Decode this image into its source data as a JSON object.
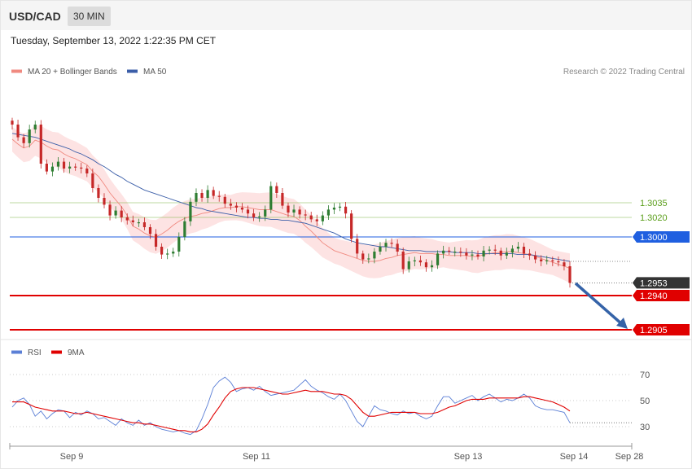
{
  "header": {
    "symbol": "USD/CAD",
    "timeframe": "30 MIN",
    "datetime": "Tuesday, September 13, 2022 1:22:35 PM CET"
  },
  "legend_main": [
    {
      "label": "MA 20 + Bollinger Bands",
      "color": "#f08a80"
    },
    {
      "label": "MA 50",
      "color": "#3b5ea8"
    }
  ],
  "credit": "Research © 2022 Trading Central",
  "legend_rsi": [
    {
      "label": "RSI",
      "color": "#5b7fd6"
    },
    {
      "label": "9MA",
      "color": "#e00000"
    }
  ],
  "colors": {
    "up": "#2e7d32",
    "down": "#c62828",
    "band": "#fde3e3",
    "resistance": "#7cb342",
    "pivot": "#1f5fe0",
    "support": "#e00000",
    "last": "#333333",
    "arrow": "#3563a8"
  },
  "chart_data": [
    {
      "type": "candlestick",
      "x_ticks": [
        "Sep 9",
        "Sep 11",
        "Sep 13",
        "Sep 14",
        "Sep 28"
      ],
      "ylim": [
        1.2895,
        1.3115
      ],
      "levels": [
        {
          "value": 1.3035,
          "label": "1.3035",
          "kind": "resistance"
        },
        {
          "value": 1.302,
          "label": "1.3020",
          "kind": "resistance"
        },
        {
          "value": 1.3,
          "label": "1.3000",
          "kind": "pivot"
        },
        {
          "value": 1.2953,
          "label": "1.2953",
          "kind": "last"
        },
        {
          "value": 1.294,
          "label": "1.2940",
          "kind": "support"
        },
        {
          "value": 1.2905,
          "label": "1.2905",
          "kind": "support"
        }
      ],
      "close": [
        1.3115,
        1.3102,
        1.3096,
        1.311,
        1.3115,
        1.3075,
        1.3067,
        1.3072,
        1.3077,
        1.307,
        1.3072,
        1.3071,
        1.307,
        1.3065,
        1.305,
        1.304,
        1.3033,
        1.3022,
        1.3027,
        1.302,
        1.3017,
        1.3015,
        1.3015,
        1.301,
        1.3003,
        1.299,
        1.2982,
        1.2983,
        1.2985,
        1.3,
        1.3016,
        1.3036,
        1.3045,
        1.304,
        1.3048,
        1.3042,
        1.3041,
        1.3034,
        1.3032,
        1.303,
        1.3028,
        1.3024,
        1.302,
        1.3021,
        1.3028,
        1.3052,
        1.3045,
        1.3032,
        1.3025,
        1.3028,
        1.3023,
        1.3022,
        1.3018,
        1.3016,
        1.3022,
        1.3028,
        1.303,
        1.3031,
        1.3024,
        1.2998,
        1.2983,
        1.2977,
        1.2978,
        1.2985,
        1.299,
        1.2994,
        1.2993,
        1.2985,
        1.2967,
        1.2975,
        1.2976,
        1.2974,
        1.2969,
        1.2971,
        1.2983,
        1.2986,
        1.2985,
        1.2985,
        1.2984,
        1.2981,
        1.2982,
        1.298,
        1.2986,
        1.2987,
        1.2986,
        1.2981,
        1.2984,
        1.2988,
        1.299,
        1.2983,
        1.2981,
        1.2977,
        1.2975,
        1.2976,
        1.2975,
        1.2974,
        1.297,
        1.2953
      ],
      "series": [
        {
          "name": "MA 20",
          "values": [
            1.31,
            1.3095,
            1.3091,
            1.3093,
            1.3099,
            1.3097,
            1.3093,
            1.309,
            1.3089,
            1.3085,
            1.3082,
            1.308,
            1.3077,
            1.3074,
            1.3067,
            1.3062,
            1.3054,
            1.3045,
            1.3038,
            1.3031,
            1.3022,
            1.3011,
            1.3008,
            1.3004,
            1.3001,
            1.3,
            1.3003,
            1.3007,
            1.3012,
            1.3016,
            1.3019,
            1.3021,
            1.3022,
            1.3024,
            1.3025,
            1.3027,
            1.3029,
            1.303,
            1.303,
            1.3031,
            1.3031,
            1.303,
            1.3029,
            1.3028,
            1.3028,
            1.3028,
            1.3026,
            1.3024,
            1.3022,
            1.3021,
            1.3017,
            1.3011,
            1.3006,
            1.3,
            1.2994,
            1.299,
            1.2986,
            1.2984,
            1.2982,
            1.298,
            1.2978,
            1.2976,
            1.2975,
            1.2975,
            1.2976,
            1.2978,
            1.2979,
            1.2981,
            1.2982,
            1.2983,
            1.2984,
            1.2983,
            1.2983,
            1.2983,
            1.2982,
            1.2982,
            1.2981,
            1.2981,
            1.2981,
            1.2981,
            1.298,
            1.298,
            1.2982,
            1.2983,
            1.2984,
            1.2984,
            1.2985,
            1.2985,
            1.2984,
            1.2983,
            1.2982,
            1.298,
            1.2978,
            1.2976,
            1.2974,
            1.2972,
            1.297,
            1.2968
          ]
        },
        {
          "name": "MA 50",
          "values": [
            1.3106,
            1.3105,
            1.3104,
            1.3103,
            1.3102,
            1.31,
            1.3098,
            1.3096,
            1.3094,
            1.3092,
            1.309,
            1.3087,
            1.3085,
            1.3082,
            1.3079,
            1.3075,
            1.3072,
            1.3068,
            1.3064,
            1.3061,
            1.3057,
            1.3054,
            1.3051,
            1.3048,
            1.3046,
            1.3044,
            1.3042,
            1.304,
            1.3038,
            1.3036,
            1.3034,
            1.3032,
            1.303,
            1.3029,
            1.3027,
            1.3026,
            1.3025,
            1.3024,
            1.3023,
            1.3022,
            1.3021,
            1.302,
            1.302,
            1.3019,
            1.3019,
            1.3018,
            1.3018,
            1.3017,
            1.3017,
            1.3016,
            1.3015,
            1.3014,
            1.3012,
            1.301,
            1.3008,
            1.3006,
            1.3004,
            1.3001,
            1.2998,
            1.2996,
            1.2994,
            1.2993,
            1.2992,
            1.2991,
            1.299,
            1.299,
            1.2989,
            1.2988,
            1.2987,
            1.2986,
            1.2986,
            1.2986,
            1.2985,
            1.2985,
            1.2985,
            1.2985,
            1.2985,
            1.2984,
            1.2984,
            1.2984,
            1.2984,
            1.2983,
            1.2983,
            1.2983,
            1.2983,
            1.2983,
            1.2983,
            1.2983,
            1.2982,
            1.2982,
            1.2982,
            1.2981,
            1.298,
            1.2979,
            1.2978,
            1.2977,
            1.2976,
            1.2975
          ]
        }
      ],
      "band_width": 0.0015
    },
    {
      "type": "line",
      "y_ticks": [
        70,
        50,
        30
      ],
      "ylim": [
        12,
        85
      ],
      "series": [
        {
          "name": "RSI",
          "values": [
            45,
            50,
            52,
            47,
            38,
            42,
            36,
            40,
            43,
            42,
            37,
            41,
            39,
            42,
            40,
            36,
            37,
            34,
            31,
            36,
            33,
            31,
            35,
            31,
            33,
            30,
            28,
            27,
            26,
            27,
            25,
            24,
            27,
            36,
            47,
            60,
            65,
            68,
            64,
            57,
            59,
            60,
            58,
            61,
            57,
            54,
            55,
            56,
            57,
            58,
            62,
            66,
            61,
            58,
            56,
            53,
            51,
            55,
            50,
            42,
            34,
            30,
            38,
            46,
            43,
            42,
            40,
            39,
            42,
            40,
            41,
            38,
            36,
            38,
            46,
            53,
            53,
            48,
            50,
            52,
            54,
            50,
            53,
            55,
            52,
            49,
            51,
            50,
            52,
            55,
            52,
            46,
            44,
            43,
            43,
            42,
            41,
            33
          ]
        },
        {
          "name": "9MA",
          "values": [
            49,
            49,
            49,
            47,
            45,
            44,
            43,
            42,
            42,
            42,
            41,
            40,
            40,
            41,
            40,
            39,
            38,
            37,
            36,
            35,
            34,
            33,
            33,
            32,
            32,
            31,
            30,
            29,
            28,
            27,
            27,
            26,
            26,
            28,
            32,
            39,
            45,
            52,
            57,
            59,
            60,
            60,
            60,
            59,
            58,
            57,
            56,
            55,
            55,
            56,
            57,
            58,
            57,
            57,
            57,
            56,
            55,
            55,
            54,
            51,
            46,
            41,
            38,
            38,
            39,
            40,
            41,
            41,
            41,
            41,
            41,
            40,
            40,
            40,
            41,
            43,
            45,
            46,
            48,
            50,
            51,
            51,
            51,
            52,
            52,
            52,
            52,
            52,
            52,
            53,
            53,
            52,
            51,
            50,
            49,
            47,
            45,
            42
          ]
        }
      ]
    }
  ]
}
